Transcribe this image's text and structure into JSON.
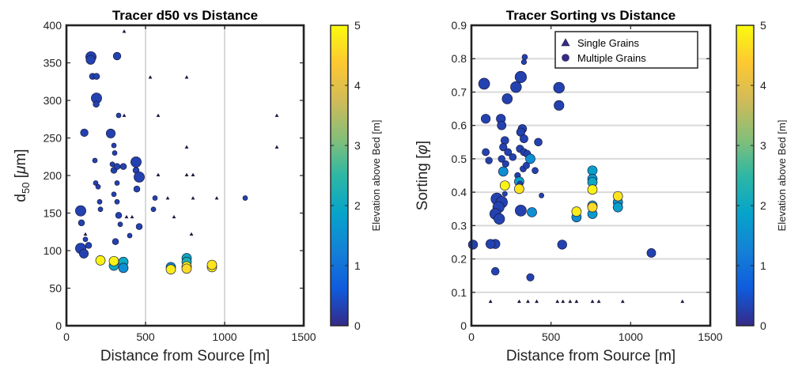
{
  "colormap": [
    "#352a87",
    "#0f5cdd",
    "#1481d6",
    "#06a4ca",
    "#2eb7a4",
    "#87bf77",
    "#d1bb59",
    "#fec832",
    "#f9fb0e"
  ],
  "chart_data": [
    {
      "type": "scatter",
      "title": "Tracer d50 vs Distance",
      "xlabel": "Distance from Source [m]",
      "ylabel_main": "d",
      "ylabel_sub": "50",
      "ylabel_mu": "μ",
      "ylabel_unit": "m]",
      "ylabel_open": " [",
      "xlim": [
        0,
        1500
      ],
      "ylim": [
        0,
        400
      ],
      "xticks": [
        0,
        500,
        1000,
        1500
      ],
      "yticks": [
        0,
        50,
        100,
        150,
        200,
        250,
        300,
        350,
        400
      ],
      "xtick_labels": [
        "0",
        "500",
        "1000",
        "1500"
      ],
      "ytick_labels": [
        "0",
        "50",
        "100",
        "150",
        "200",
        "250",
        "300",
        "350",
        "400"
      ],
      "colorbar": {
        "label": "Elevation above Bed [m]",
        "range": [
          0,
          5
        ],
        "ticks": [
          "0",
          "1",
          "2",
          "3",
          "4",
          "5"
        ]
      },
      "grid": "vertical",
      "series": [
        {
          "marker": "triangle",
          "points": [
            [
              365,
              392,
              0.3
            ],
            [
              530,
              331,
              0.3
            ],
            [
              760,
              331,
              0.3
            ],
            [
              365,
              280,
              0.3
            ],
            [
              580,
              280,
              0.3
            ],
            [
              1330,
              280,
              0.3
            ],
            [
              760,
              238,
              0.3
            ],
            [
              1330,
              238,
              0.3
            ],
            [
              580,
              201,
              0.3
            ],
            [
              760,
              201,
              0.3
            ],
            [
              800,
              201,
              0.3
            ],
            [
              640,
              170,
              0.3
            ],
            [
              800,
              170,
              0.3
            ],
            [
              950,
              170,
              0.3
            ],
            [
              380,
              145,
              0.3
            ],
            [
              415,
              145,
              0.3
            ],
            [
              680,
              145,
              0.3
            ],
            [
              790,
              122,
              0.3
            ],
            [
              120,
              122,
              0.3
            ]
          ]
        },
        {
          "marker": "circle",
          "points": [
            [
              155,
              358,
              0.3
            ],
            [
              153,
              354,
              0.3
            ],
            [
              320,
              359,
              0.3
            ],
            [
              165,
              332,
              0.3
            ],
            [
              190,
              332,
              0.3
            ],
            [
              190,
              303,
              0.3
            ],
            [
              188,
              295,
              0.3
            ],
            [
              330,
              280,
              0.3
            ],
            [
              113,
              257,
              0.3
            ],
            [
              280,
              256,
              0.3
            ],
            [
              300,
              240,
              0.3
            ],
            [
              305,
              230,
              0.3
            ],
            [
              180,
              220,
              0.3
            ],
            [
              290,
              215,
              0.3
            ],
            [
              300,
              207,
              0.3
            ],
            [
              320,
              212,
              0.3
            ],
            [
              360,
              212,
              0.3
            ],
            [
              440,
              218,
              0.3
            ],
            [
              440,
              207,
              0.3
            ],
            [
              460,
              198,
              0.3
            ],
            [
              185,
              190,
              0.3
            ],
            [
              200,
              185,
              0.3
            ],
            [
              320,
              190,
              0.3
            ],
            [
              300,
              175,
              0.3
            ],
            [
              320,
              165,
              0.3
            ],
            [
              210,
              165,
              0.3
            ],
            [
              215,
              155,
              0.3
            ],
            [
              445,
              182,
              0.3
            ],
            [
              560,
              170,
              0.3
            ],
            [
              550,
              155,
              0.3
            ],
            [
              1130,
              170,
              0.3
            ],
            [
              90,
              153,
              0.3
            ],
            [
              95,
              137,
              0.3
            ],
            [
              120,
              115,
              0.3
            ],
            [
              140,
              107,
              0.3
            ],
            [
              90,
              103,
              0.3
            ],
            [
              110,
              96,
              0.3
            ],
            [
              330,
              147,
              0.3
            ],
            [
              340,
              135,
              0.3
            ],
            [
              460,
              132,
              0.3
            ],
            [
              310,
              112,
              0.3
            ],
            [
              400,
              120,
              0.3
            ],
            [
              210,
              90,
              0.6
            ],
            [
              215,
              87,
              4.9
            ],
            [
              300,
              80,
              2.0
            ],
            [
              300,
              86,
              4.9
            ],
            [
              360,
              85,
              2.0
            ],
            [
              360,
              77,
              1.5
            ],
            [
              660,
              78,
              1.5
            ],
            [
              660,
              75,
              4.8
            ],
            [
              760,
              90,
              2.0
            ],
            [
              760,
              85,
              2.2
            ],
            [
              760,
              79,
              4.9
            ],
            [
              760,
              76,
              4.6
            ],
            [
              920,
              78,
              4.9
            ],
            [
              920,
              81,
              4.7
            ]
          ]
        }
      ]
    },
    {
      "type": "scatter",
      "title": "Tracer Sorting vs Distance",
      "xlabel": "Distance from Source [m]",
      "ylabel_text": "Sorting [",
      "ylabel_phi": "φ",
      "ylabel_close": "]",
      "xlim": [
        0,
        1500
      ],
      "ylim": [
        0,
        0.9
      ],
      "xticks": [
        0,
        500,
        1000,
        1500
      ],
      "yticks": [
        0,
        0.1,
        0.2,
        0.3,
        0.4,
        0.5,
        0.6,
        0.7,
        0.8,
        0.9
      ],
      "xtick_labels": [
        "0",
        "500",
        "1000",
        "1500"
      ],
      "ytick_labels": [
        "0",
        "0.1",
        "0.2",
        "0.3",
        "0.4",
        "0.5",
        "0.6",
        "0.7",
        "0.8",
        "0.9"
      ],
      "colorbar": {
        "label": "Elevation above Bed [m]",
        "range": [
          0,
          5
        ],
        "ticks": [
          "0",
          "1",
          "2",
          "3",
          "4",
          "5"
        ]
      },
      "grid": "horizontal",
      "legend": {
        "position": "top-right",
        "entries": [
          "Single Grains",
          "Multiple Grains"
        ]
      },
      "series": [
        {
          "marker": "triangle",
          "points": [
            [
              120,
              0.073,
              0.3
            ],
            [
              300,
              0.073,
              0.3
            ],
            [
              355,
              0.073,
              0.3
            ],
            [
              410,
              0.073,
              0.3
            ],
            [
              540,
              0.073,
              0.3
            ],
            [
              575,
              0.073,
              0.3
            ],
            [
              620,
              0.073,
              0.3
            ],
            [
              660,
              0.073,
              0.3
            ],
            [
              760,
              0.073,
              0.3
            ],
            [
              800,
              0.073,
              0.3
            ],
            [
              950,
              0.073,
              0.3
            ],
            [
              1325,
              0.073,
              0.3
            ]
          ]
        },
        {
          "marker": "circle",
          "points": [
            [
              335,
              0.805,
              0.3
            ],
            [
              330,
              0.79,
              0.3
            ],
            [
              310,
              0.745,
              0.3
            ],
            [
              80,
              0.725,
              0.3
            ],
            [
              280,
              0.715,
              0.3
            ],
            [
              550,
              0.713,
              0.3
            ],
            [
              225,
              0.68,
              0.3
            ],
            [
              550,
              0.66,
              0.3
            ],
            [
              185,
              0.62,
              0.3
            ],
            [
              90,
              0.62,
              0.3
            ],
            [
              190,
              0.6,
              0.3
            ],
            [
              320,
              0.59,
              0.3
            ],
            [
              310,
              0.58,
              0.3
            ],
            [
              330,
              0.56,
              0.3
            ],
            [
              210,
              0.555,
              0.3
            ],
            [
              420,
              0.55,
              0.3
            ],
            [
              200,
              0.535,
              0.3
            ],
            [
              305,
              0.53,
              0.3
            ],
            [
              330,
              0.52,
              0.3
            ],
            [
              90,
              0.52,
              0.3
            ],
            [
              230,
              0.52,
              0.3
            ],
            [
              350,
              0.515,
              0.3
            ],
            [
              260,
              0.505,
              0.3
            ],
            [
              110,
              0.495,
              0.3
            ],
            [
              190,
              0.5,
              0.3
            ],
            [
              215,
              0.485,
              0.3
            ],
            [
              325,
              0.47,
              0.3
            ],
            [
              345,
              0.48,
              0.3
            ],
            [
              400,
              0.465,
              0.3
            ],
            [
              200,
              0.462,
              1.5
            ],
            [
              290,
              0.45,
              0.3
            ],
            [
              370,
              0.5,
              1.5
            ],
            [
              300,
              0.432,
              1.8
            ],
            [
              305,
              0.425,
              0.3
            ],
            [
              210,
              0.42,
              4.9
            ],
            [
              300,
              0.41,
              4.7
            ],
            [
              210,
              0.395,
              0.3
            ],
            [
              160,
              0.38,
              0.3
            ],
            [
              190,
              0.37,
              0.3
            ],
            [
              170,
              0.355,
              0.3
            ],
            [
              440,
              0.39,
              0.3
            ],
            [
              310,
              0.345,
              0.3
            ],
            [
              380,
              0.34,
              1.5
            ],
            [
              150,
              0.335,
              0.3
            ],
            [
              175,
              0.32,
              0.3
            ],
            [
              150,
              0.245,
              0.3
            ],
            [
              120,
              0.245,
              0.3
            ],
            [
              570,
              0.243,
              0.3
            ],
            [
              150,
              0.163,
              0.3
            ],
            [
              370,
              0.145,
              0.3
            ],
            [
              1130,
              0.218,
              0.3
            ],
            [
              10,
              0.243,
              0.3
            ],
            [
              660,
              0.325,
              1.5
            ],
            [
              660,
              0.342,
              4.8
            ],
            [
              760,
              0.465,
              1.8
            ],
            [
              760,
              0.44,
              1.6
            ],
            [
              760,
              0.43,
              2.0
            ],
            [
              760,
              0.408,
              4.9
            ],
            [
              760,
              0.36,
              2.2
            ],
            [
              760,
              0.335,
              1.7
            ],
            [
              760,
              0.355,
              4.6
            ],
            [
              920,
              0.37,
              1.6
            ],
            [
              920,
              0.355,
              1.8
            ],
            [
              920,
              0.388,
              4.7
            ]
          ]
        }
      ]
    }
  ]
}
